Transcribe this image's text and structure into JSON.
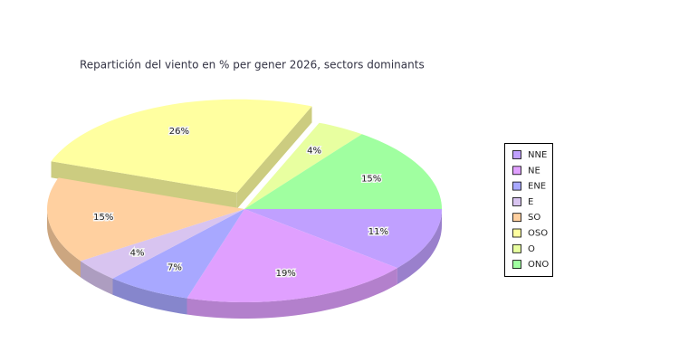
{
  "chart_data": {
    "type": "pie3d",
    "title": "Repartición del viento en % per gener 2026, sectors dominants",
    "categories": [
      "NNE",
      "NE",
      "ENE",
      "E",
      "SO",
      "OSO",
      "O",
      "ONO"
    ],
    "values": [
      11,
      19,
      7,
      4,
      15,
      26,
      4,
      15
    ],
    "value_labels": [
      "11%",
      "19%",
      "7%",
      "4%",
      "15%",
      "26%",
      "4%",
      "15%"
    ],
    "colors": [
      "#c0a0ff",
      "#e0a0ff",
      "#a8a8ff",
      "#d8c4f0",
      "#ffd0a0",
      "#ffffa0",
      "#e8ffa0",
      "#a0ffa0"
    ],
    "explode": "OSO",
    "legend": "right"
  }
}
